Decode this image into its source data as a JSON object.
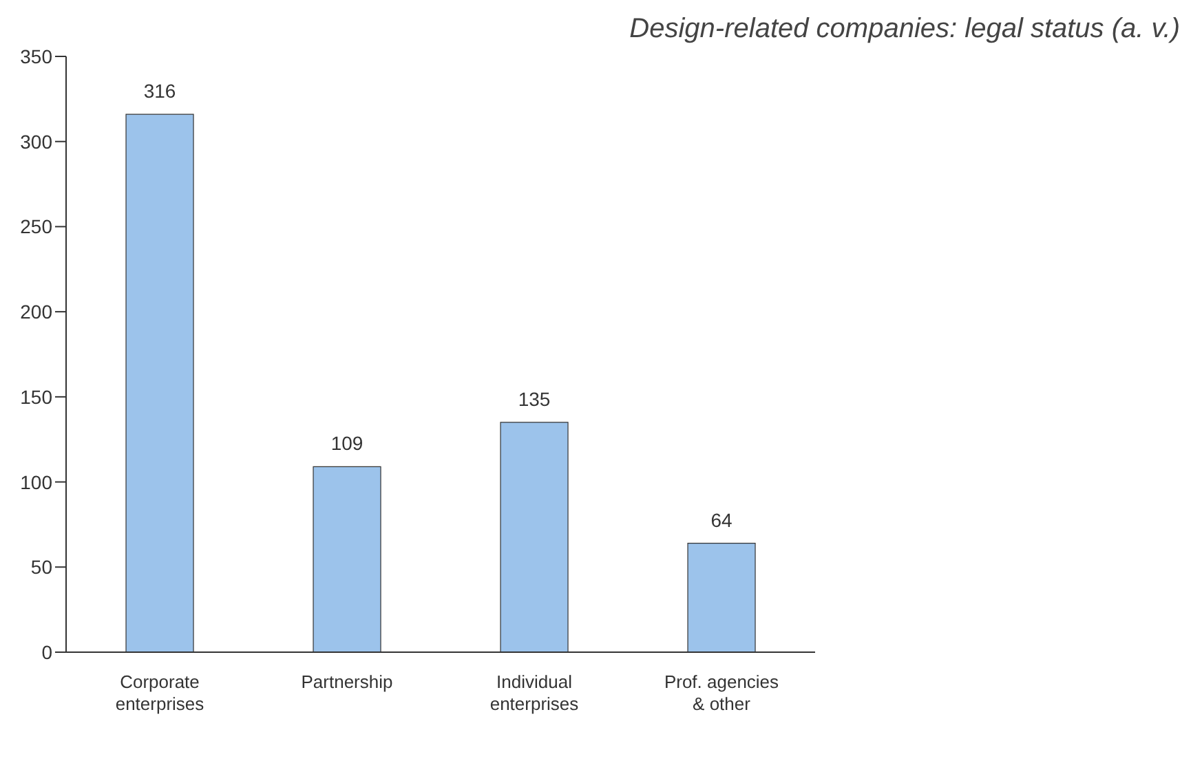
{
  "chart_data": {
    "type": "bar",
    "title": "Design-related companies: legal status (a. v.)",
    "categories": [
      "Corporate enterprises",
      "Partnership",
      "Individual enterprises",
      "Prof. agencies & other"
    ],
    "values": [
      316,
      109,
      135,
      64
    ],
    "color": "#9cc3eb",
    "ylim": [
      0,
      350
    ],
    "yticks": [
      0,
      50,
      100,
      150,
      200,
      250,
      300,
      350
    ],
    "grid": false,
    "legend": false,
    "data_labels": true
  }
}
